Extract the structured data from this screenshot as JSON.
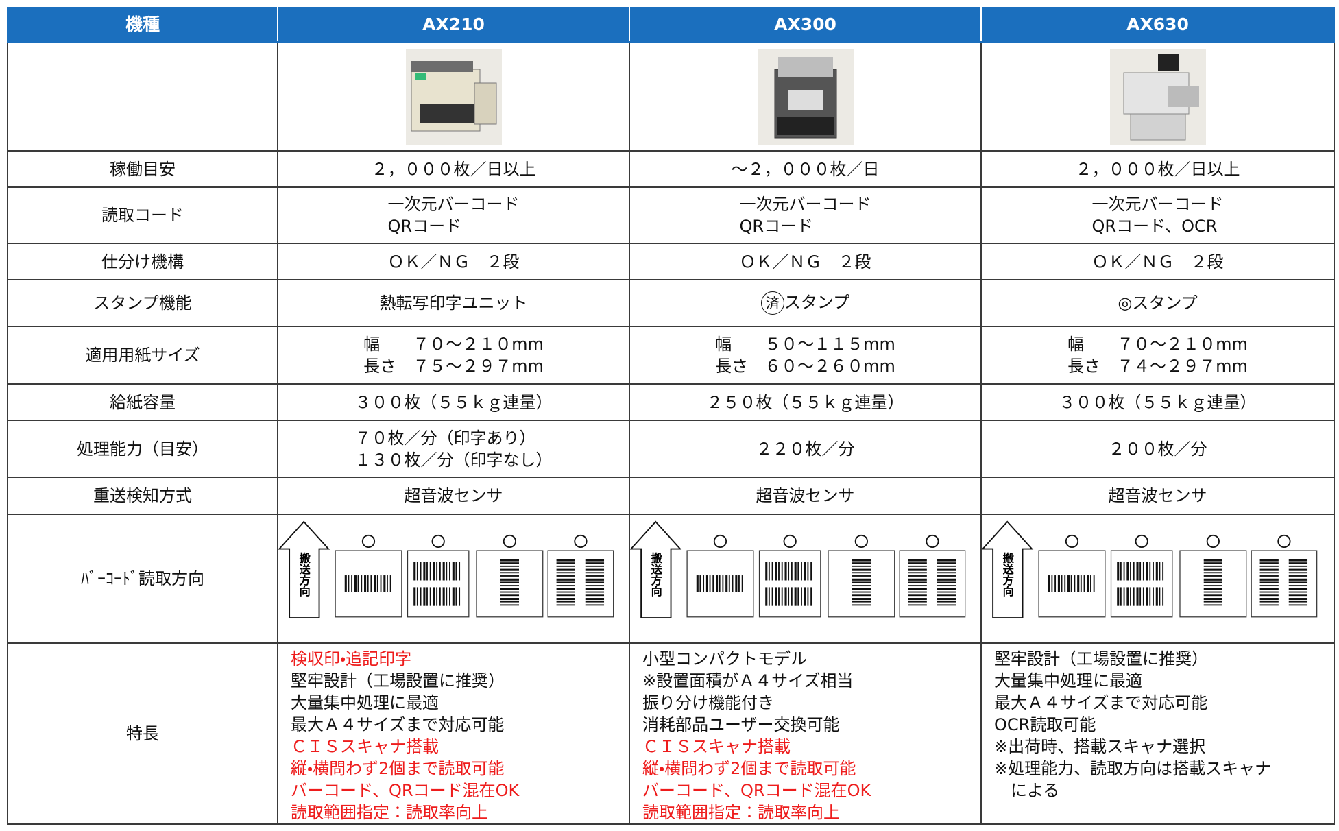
{
  "table": {
    "header": [
      "機種",
      "AX210",
      "AX300",
      "AX630"
    ],
    "rows": [
      {
        "label": "稼働目安",
        "cells": [
          [
            "２，０００枚／日以上"
          ],
          [
            "～２，０００枚／日"
          ],
          [
            "２，０００枚／日以上"
          ]
        ]
      },
      {
        "label": "読取コード",
        "cells": [
          [
            "一次元バーコード",
            "QRコード"
          ],
          [
            "一次元バーコード",
            "QRコード"
          ],
          [
            "一次元バーコード",
            "QRコード、OCR"
          ]
        ]
      },
      {
        "label": "仕分け機構",
        "cells": [
          [
            "ＯＫ／ＮＧ　２段"
          ],
          [
            "ＯＫ／ＮＧ　２段"
          ],
          [
            "ＯＫ／ＮＧ　２段"
          ]
        ]
      },
      {
        "label": "スタンプ機能",
        "cells": [
          [
            "熱転写印字ユニット"
          ],
          [
            {
              "circled": "済",
              "text": "スタンプ"
            }
          ],
          [
            "◎スタンプ"
          ]
        ]
      },
      {
        "label": "適用用紙サイズ",
        "cells": [
          [
            "幅　　７０～２１０mm",
            "長さ　７５～２９７mm"
          ],
          [
            "幅　　５０～１１５mm",
            "長さ　６０～２６０mm"
          ],
          [
            "幅　　７０～２１０mm",
            "長さ　７４～２９７mm"
          ]
        ]
      },
      {
        "label": "給紙容量",
        "cells": [
          [
            "３００枚（５５ｋｇ連量）"
          ],
          [
            "２５０枚（５５ｋｇ連量）"
          ],
          [
            "３００枚（５５ｋｇ連量）"
          ]
        ]
      },
      {
        "label": "処理能力（目安）",
        "cells": [
          [
            "７０枚／分（印字あり）",
            "１３０枚／分（印字なし）"
          ],
          [
            "２２０枚／分"
          ],
          [
            "２００枚／分"
          ]
        ]
      },
      {
        "label": "重送検知方式",
        "cells": [
          [
            "超音波センサ"
          ],
          [
            "超音波センサ"
          ],
          [
            "超音波センサ"
          ]
        ]
      }
    ],
    "barcode_row": {
      "label": "ﾊﾞｰｺｰﾄﾞ読取方向",
      "direction": [
        "搬送方向",
        "搬送方向",
        "搬送方向"
      ]
    },
    "features": {
      "label": "特長",
      "cells": [
        [
          {
            "text": "検収印・追記印字",
            "color": "#ee1c1c"
          },
          "堅牢設計（工場設置に推奨）",
          "大量集中処理に最適",
          "最大Ａ４サイズまで対応可能",
          {
            "text": "ＣＩＳスキャナ搭載",
            "color": "#ee1c1c"
          },
          {
            "text": "縦・横問わず2個まで読取可能",
            "color": "#ee1c1c"
          },
          {
            "text": "バーコード、QRコード混在OK",
            "color": "#ee1c1c"
          },
          {
            "text": "読取範囲指定：読取率向上",
            "color": "#ee1c1c"
          }
        ],
        [
          "小型コンパクトモデル",
          "※設置面積がＡ４サイズ相当",
          "振り分け機能付き",
          "消耗部品ユーザー交換可能",
          {
            "text": "ＣＩＳスキャナ搭載",
            "color": "#ee1c1c"
          },
          {
            "text": "縦・横問わず2個まで読取可能",
            "color": "#ee1c1c"
          },
          {
            "text": "バーコード、QRコード混在OK",
            "color": "#ee1c1c"
          },
          {
            "text": "読取範囲指定：読取率向上",
            "color": "#ee1c1c"
          }
        ],
        [
          "堅牢設計（工場設置に推奨）",
          "大量集中処理に最適",
          "最大Ａ４サイズまで対応可能",
          "OCR読取可能",
          "※出荷時、搭載スキャナ選択",
          "※処理能力、読取方向は搭載スキャナ",
          "　による"
        ]
      ]
    }
  }
}
